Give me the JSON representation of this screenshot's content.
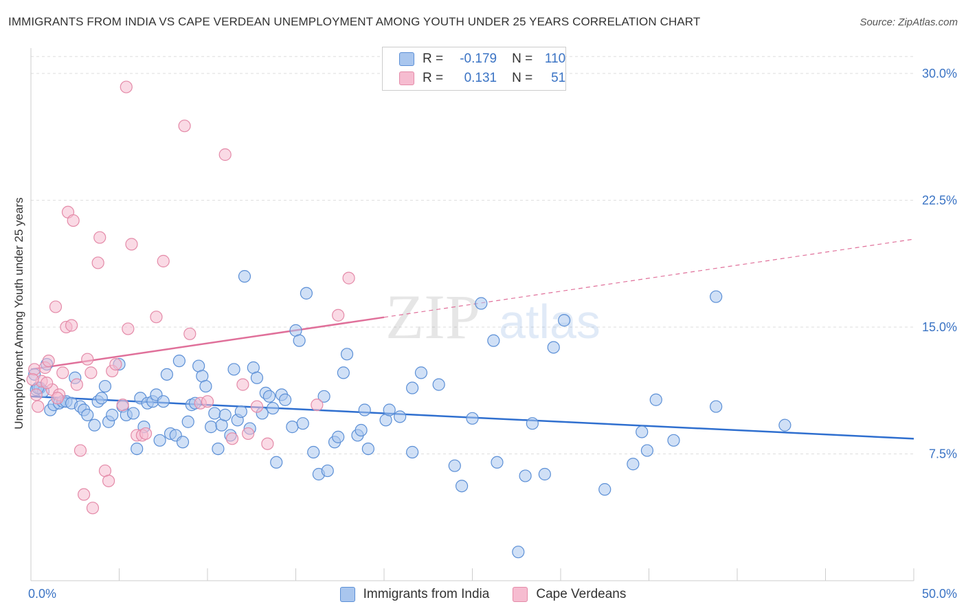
{
  "header": {
    "title": "IMMIGRANTS FROM INDIA VS CAPE VERDEAN UNEMPLOYMENT AMONG YOUTH UNDER 25 YEARS CORRELATION CHART",
    "source": "Source: ZipAtlas.com"
  },
  "watermark": {
    "zip": "ZIP",
    "atlas": "atlas"
  },
  "legend": {
    "rows": [
      {
        "r_label": "R =",
        "r_value": "-0.179",
        "n_label": "N =",
        "n_value": "110"
      },
      {
        "r_label": "R =",
        "r_value": "0.131",
        "n_label": "N =",
        "n_value": "51"
      }
    ]
  },
  "chart_data": {
    "type": "scatter",
    "title": "IMMIGRANTS FROM INDIA VS CAPE VERDEAN UNEMPLOYMENT AMONG YOUTH UNDER 25 YEARS CORRELATION CHART",
    "xlabel": "",
    "ylabel": "Unemployment Among Youth under 25 years",
    "xlim": [
      0,
      50
    ],
    "ylim": [
      0,
      31.5
    ],
    "x_tick_labels": [
      "0.0%",
      "50.0%"
    ],
    "y_ticks": [
      7.5,
      15.0,
      22.5,
      30.0
    ],
    "y_tick_labels": [
      "7.5%",
      "15.0%",
      "22.5%",
      "30.0%"
    ],
    "grid": true,
    "legend_position": "top-center",
    "series": [
      {
        "name": "Immigrants from India",
        "color": "#a9c6ee",
        "stroke": "#5b8fd6",
        "line_color": "#2f6fcf",
        "trend": {
          "x": [
            0,
            50
          ],
          "y": [
            10.9,
            8.4
          ],
          "dashed_from": null
        },
        "points": [
          [
            0.3,
            11.3
          ],
          [
            0.5,
            11.4
          ],
          [
            0.7,
            11.2
          ],
          [
            0.9,
            12.8
          ],
          [
            1.1,
            10.1
          ],
          [
            1.3,
            10.4
          ],
          [
            1.6,
            10.5
          ],
          [
            1.8,
            10.6
          ],
          [
            2.0,
            10.6
          ],
          [
            2.3,
            10.5
          ],
          [
            2.5,
            12.0
          ],
          [
            2.8,
            10.3
          ],
          [
            3.0,
            10.1
          ],
          [
            3.2,
            9.8
          ],
          [
            3.6,
            9.2
          ],
          [
            3.8,
            10.6
          ],
          [
            4.0,
            10.8
          ],
          [
            4.2,
            11.5
          ],
          [
            4.4,
            9.4
          ],
          [
            4.6,
            9.8
          ],
          [
            5.0,
            12.8
          ],
          [
            5.2,
            10.3
          ],
          [
            5.4,
            9.8
          ],
          [
            5.8,
            9.9
          ],
          [
            6.0,
            7.8
          ],
          [
            6.2,
            10.8
          ],
          [
            6.4,
            9.1
          ],
          [
            6.6,
            10.5
          ],
          [
            6.9,
            10.6
          ],
          [
            7.1,
            11.0
          ],
          [
            7.3,
            8.3
          ],
          [
            7.5,
            10.6
          ],
          [
            7.7,
            12.2
          ],
          [
            7.9,
            8.7
          ],
          [
            8.2,
            8.6
          ],
          [
            8.4,
            13.0
          ],
          [
            8.6,
            8.2
          ],
          [
            8.9,
            9.4
          ],
          [
            9.1,
            10.4
          ],
          [
            9.3,
            10.5
          ],
          [
            9.5,
            12.7
          ],
          [
            9.7,
            12.1
          ],
          [
            9.9,
            11.5
          ],
          [
            10.2,
            9.1
          ],
          [
            10.4,
            9.9
          ],
          [
            10.6,
            7.8
          ],
          [
            10.8,
            9.2
          ],
          [
            11.0,
            9.8
          ],
          [
            11.3,
            8.6
          ],
          [
            11.5,
            12.5
          ],
          [
            11.7,
            9.5
          ],
          [
            11.9,
            10.0
          ],
          [
            12.1,
            18.0
          ],
          [
            12.4,
            9.0
          ],
          [
            12.6,
            12.6
          ],
          [
            12.8,
            12.0
          ],
          [
            13.1,
            9.9
          ],
          [
            13.3,
            11.1
          ],
          [
            13.5,
            10.9
          ],
          [
            13.7,
            10.2
          ],
          [
            13.9,
            7.0
          ],
          [
            14.2,
            11.0
          ],
          [
            14.4,
            10.7
          ],
          [
            14.8,
            9.1
          ],
          [
            15.0,
            14.8
          ],
          [
            15.2,
            14.2
          ],
          [
            15.4,
            9.3
          ],
          [
            15.6,
            17.0
          ],
          [
            16.0,
            7.6
          ],
          [
            16.3,
            6.3
          ],
          [
            16.6,
            10.9
          ],
          [
            16.8,
            6.5
          ],
          [
            17.2,
            8.2
          ],
          [
            17.4,
            8.5
          ],
          [
            17.7,
            12.3
          ],
          [
            17.9,
            13.4
          ],
          [
            18.5,
            8.6
          ],
          [
            18.7,
            8.9
          ],
          [
            18.9,
            10.1
          ],
          [
            19.1,
            7.8
          ],
          [
            20.1,
            9.5
          ],
          [
            20.3,
            10.1
          ],
          [
            20.9,
            9.7
          ],
          [
            21.6,
            7.6
          ],
          [
            21.6,
            11.4
          ],
          [
            22.1,
            12.3
          ],
          [
            23.1,
            11.6
          ],
          [
            24.0,
            6.8
          ],
          [
            24.4,
            5.6
          ],
          [
            25.0,
            9.6
          ],
          [
            25.5,
            16.4
          ],
          [
            26.2,
            14.2
          ],
          [
            26.4,
            7.0
          ],
          [
            27.6,
            1.7
          ],
          [
            28.0,
            6.2
          ],
          [
            28.4,
            9.3
          ],
          [
            29.1,
            6.3
          ],
          [
            29.6,
            13.8
          ],
          [
            30.2,
            15.4
          ],
          [
            32.5,
            5.4
          ],
          [
            34.1,
            6.9
          ],
          [
            34.6,
            8.8
          ],
          [
            34.9,
            7.7
          ],
          [
            35.4,
            10.7
          ],
          [
            36.4,
            8.3
          ],
          [
            38.8,
            16.8
          ],
          [
            38.8,
            10.3
          ],
          [
            42.7,
            9.2
          ],
          [
            0.2,
            12.2
          ],
          [
            0.4,
            11.4
          ]
        ]
      },
      {
        "name": "Cape Verdeans",
        "color": "#f6bcd0",
        "stroke": "#e48aa8",
        "line_color": "#e0709a",
        "trend": {
          "x": [
            0,
            50
          ],
          "y": [
            12.5,
            20.2
          ],
          "dashed_from": 20
        },
        "points": [
          [
            0.2,
            12.5
          ],
          [
            0.4,
            10.3
          ],
          [
            0.6,
            11.8
          ],
          [
            0.8,
            12.6
          ],
          [
            1.0,
            13.0
          ],
          [
            1.2,
            11.3
          ],
          [
            1.4,
            16.2
          ],
          [
            1.6,
            11.0
          ],
          [
            1.8,
            12.3
          ],
          [
            2.0,
            15.0
          ],
          [
            2.1,
            21.8
          ],
          [
            2.3,
            15.1
          ],
          [
            2.4,
            21.3
          ],
          [
            2.6,
            11.6
          ],
          [
            2.8,
            7.7
          ],
          [
            3.0,
            5.1
          ],
          [
            3.2,
            13.1
          ],
          [
            3.4,
            12.3
          ],
          [
            3.5,
            4.3
          ],
          [
            3.8,
            18.8
          ],
          [
            3.9,
            20.3
          ],
          [
            4.2,
            6.5
          ],
          [
            4.4,
            5.9
          ],
          [
            4.6,
            12.4
          ],
          [
            4.8,
            12.8
          ],
          [
            5.2,
            10.4
          ],
          [
            5.4,
            29.2
          ],
          [
            5.5,
            14.9
          ],
          [
            5.7,
            19.9
          ],
          [
            6.0,
            8.6
          ],
          [
            6.3,
            8.6
          ],
          [
            6.5,
            8.7
          ],
          [
            7.1,
            15.6
          ],
          [
            7.5,
            18.9
          ],
          [
            8.7,
            26.9
          ],
          [
            9.0,
            14.6
          ],
          [
            9.6,
            10.5
          ],
          [
            10.0,
            10.6
          ],
          [
            11.0,
            25.2
          ],
          [
            11.4,
            8.4
          ],
          [
            12.0,
            11.6
          ],
          [
            12.3,
            8.7
          ],
          [
            12.8,
            10.3
          ],
          [
            13.4,
            8.1
          ],
          [
            16.2,
            10.4
          ],
          [
            17.4,
            15.7
          ],
          [
            18.0,
            17.9
          ],
          [
            0.3,
            11.0
          ],
          [
            0.9,
            11.7
          ],
          [
            1.5,
            10.8
          ],
          [
            0.1,
            11.9
          ]
        ]
      }
    ]
  },
  "bottom_legend": {
    "items": [
      {
        "label": "Immigrants from India",
        "color": "#a9c6ee",
        "stroke": "#5b8fd6"
      },
      {
        "label": "Cape Verdeans",
        "color": "#f6bcd0",
        "stroke": "#e48aa8"
      }
    ]
  }
}
